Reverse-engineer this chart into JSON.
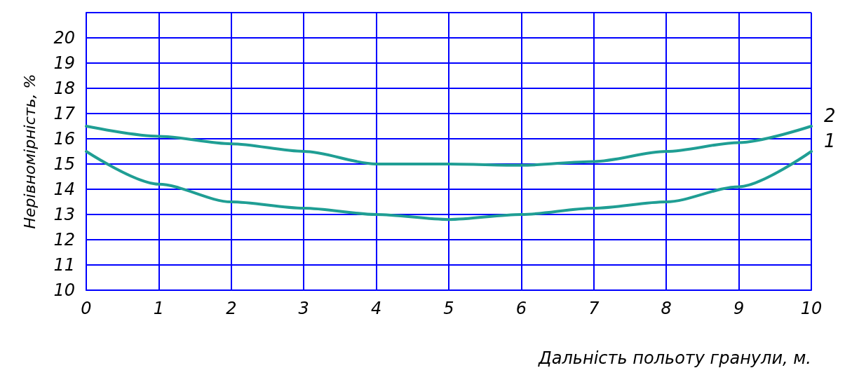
{
  "chart_data": {
    "type": "line",
    "xlabel": "Дальність польоту гранули, м.",
    "ylabel": "Нерівномірність, %",
    "x": [
      0,
      1,
      2,
      3,
      4,
      5,
      6,
      7,
      8,
      9,
      10
    ],
    "series": [
      {
        "name": "1",
        "color": "#1f9e94",
        "values": [
          15.5,
          14.2,
          13.5,
          13.25,
          13.0,
          12.8,
          13.0,
          13.25,
          13.5,
          14.1,
          15.5
        ]
      },
      {
        "name": "2",
        "color": "#1f9e94",
        "values": [
          16.5,
          16.1,
          15.8,
          15.5,
          15.0,
          15.0,
          14.95,
          15.1,
          15.5,
          15.85,
          16.5
        ]
      }
    ],
    "xlim": [
      0,
      10
    ],
    "xticks": [
      0,
      1,
      2,
      3,
      4,
      5,
      6,
      7,
      8,
      9,
      10
    ],
    "ylim": [
      10,
      21
    ],
    "yticks": [
      10,
      11,
      12,
      13,
      14,
      15,
      16,
      17,
      18,
      19,
      20,
      {
        "value": 21,
        "label": null
      }
    ],
    "grid": true,
    "marker": "none",
    "line_style": "solid",
    "legend": false
  }
}
